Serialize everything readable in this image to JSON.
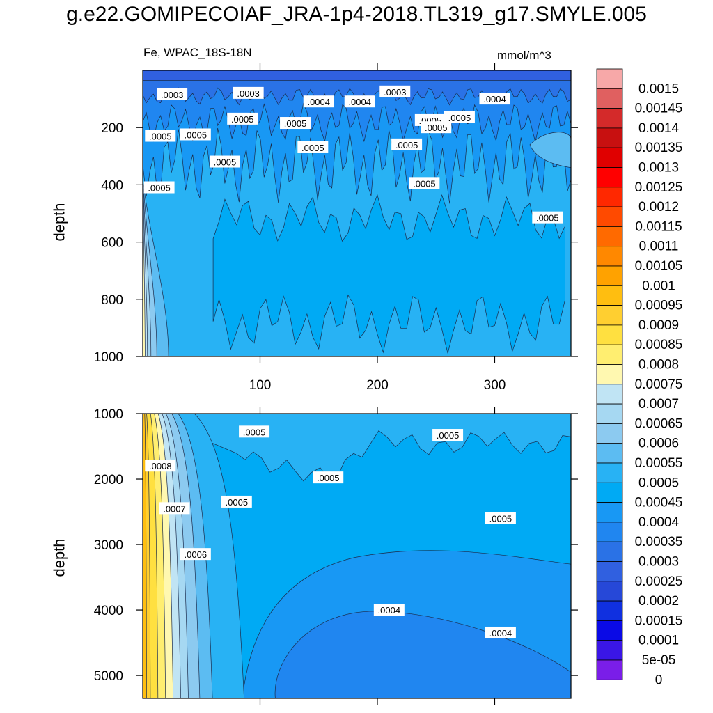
{
  "title": "g.e22.GOMIPECOIAF_JRA-1p4-2018.TL319_g17.SMYLE.005",
  "subtitle": "Fe, WPAC_18S-18N",
  "units": "mmol/m^3",
  "colors": {
    "frame": "#000000",
    "contour_line": "#1a2a4a"
  },
  "chart_data": [
    {
      "type": "heatmap",
      "panel": "upper",
      "xlabel": "",
      "ylabel": "depth",
      "xlim": [
        0,
        365
      ],
      "ylim": [
        0,
        1000
      ],
      "y_inverted": true,
      "x_ticks": [
        100,
        200,
        300
      ],
      "y_ticks": [
        200,
        400,
        600,
        800,
        1000
      ],
      "contour_labels": [
        {
          "text": ".0003",
          "x": 25,
          "y": 85
        },
        {
          "text": ".0003",
          "x": 90,
          "y": 80
        },
        {
          "text": ".0004",
          "x": 150,
          "y": 110
        },
        {
          "text": ".0004",
          "x": 185,
          "y": 110
        },
        {
          "text": ".0003",
          "x": 215,
          "y": 75
        },
        {
          "text": ".0004",
          "x": 300,
          "y": 100
        },
        {
          "text": ".0005",
          "x": 85,
          "y": 170
        },
        {
          "text": ".0005",
          "x": 130,
          "y": 185
        },
        {
          "text": ".0005",
          "x": 145,
          "y": 270
        },
        {
          "text": ".0005",
          "x": 225,
          "y": 260
        },
        {
          "text": ".0005",
          "x": 245,
          "y": 175
        },
        {
          "text": ".0005",
          "x": 250,
          "y": 200
        },
        {
          "text": ".0005",
          "x": 270,
          "y": 165
        },
        {
          "text": ".0005",
          "x": 15,
          "y": 230
        },
        {
          "text": ".0005",
          "x": 45,
          "y": 225
        },
        {
          "text": ".0005",
          "x": 70,
          "y": 320
        },
        {
          "text": ".0005",
          "x": 14,
          "y": 410
        },
        {
          "text": ".0005",
          "x": 240,
          "y": 395
        },
        {
          "text": ".0005",
          "x": 345,
          "y": 515
        }
      ]
    },
    {
      "type": "heatmap",
      "panel": "lower",
      "xlabel": "",
      "ylabel": "depth",
      "xlim": [
        0,
        365
      ],
      "ylim": [
        1000,
        5350
      ],
      "y_inverted": true,
      "y_ticks": [
        1000,
        2000,
        3000,
        4000,
        5000
      ],
      "contour_labels": [
        {
          "text": ".0005",
          "x": 95,
          "y": 1280
        },
        {
          "text": ".0005",
          "x": 260,
          "y": 1330
        },
        {
          "text": ".0005",
          "x": 158,
          "y": 1980
        },
        {
          "text": ".0005",
          "x": 305,
          "y": 2600
        },
        {
          "text": ".0005",
          "x": 80,
          "y": 2350
        },
        {
          "text": ".0008",
          "x": 15,
          "y": 1800
        },
        {
          "text": ".0007",
          "x": 27,
          "y": 2450
        },
        {
          "text": ".0006",
          "x": 45,
          "y": 3150
        },
        {
          "text": ".0004",
          "x": 210,
          "y": 4000
        },
        {
          "text": ".0004",
          "x": 305,
          "y": 4350
        }
      ]
    }
  ],
  "colorbar": {
    "levels": [
      "0.0015",
      "0.00145",
      "0.0014",
      "0.00135",
      "0.0013",
      "0.00125",
      "0.0012",
      "0.00115",
      "0.0011",
      "0.00105",
      "0.001",
      "0.00095",
      "0.0009",
      "0.00085",
      "0.0008",
      "0.00075",
      "0.0007",
      "0.00065",
      "0.0006",
      "0.00055",
      "0.0005",
      "0.00045",
      "0.0004",
      "0.00035",
      "0.0003",
      "0.00025",
      "0.0002",
      "0.00015",
      "0.0001",
      "5e-05",
      "0"
    ],
    "colors": [
      "#f7a8a8",
      "#e06060",
      "#d42a2a",
      "#c81010",
      "#e00000",
      "#ff0000",
      "#ff2800",
      "#ff4a00",
      "#ff6a00",
      "#ff8800",
      "#ffa200",
      "#ffbe10",
      "#ffcf30",
      "#ffe040",
      "#ffee70",
      "#fff8b0",
      "#c0e4f4",
      "#a6d8f2",
      "#8ccaf0",
      "#5cbcf2",
      "#28b2f4",
      "#00aaf4",
      "#1898f4",
      "#2086f0",
      "#2a72e6",
      "#3060e0",
      "#2648d8",
      "#1030e0",
      "#0a0ae6",
      "#3a16e6",
      "#7a1ee8"
    ]
  }
}
